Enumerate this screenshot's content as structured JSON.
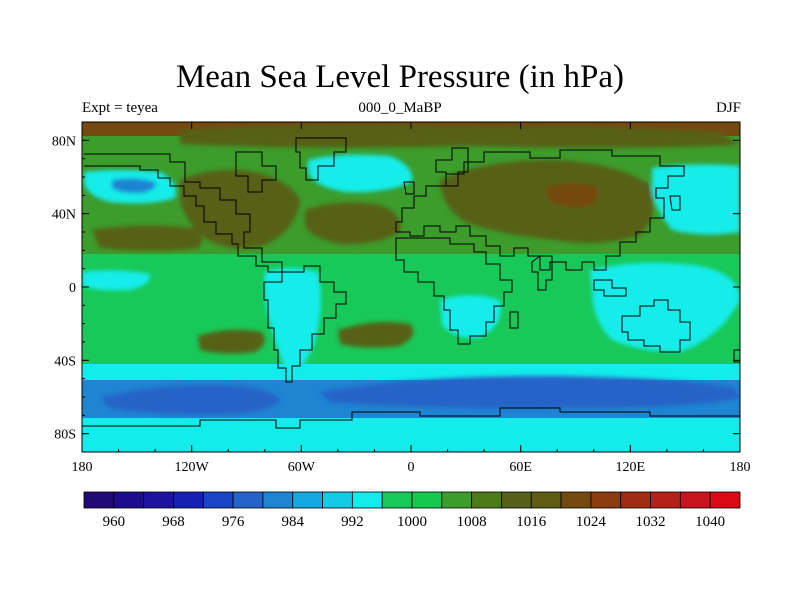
{
  "title": "Mean Sea Level Pressure (in hPa)",
  "left_string": "Expt = teyea",
  "center_string": "000_0_MaBP",
  "right_string": "DJF",
  "lon_ticks": [
    "180",
    "120W",
    "60W",
    "0",
    "60E",
    "120E",
    "180"
  ],
  "lat_ticks": [
    "80N",
    "40N",
    "0",
    "40S",
    "80S"
  ],
  "colorbar_labels": [
    "960",
    "968",
    "976",
    "984",
    "992",
    "1000",
    "1008",
    "1016",
    "1024",
    "1032",
    "1040"
  ],
  "colorbar_colors": [
    "#1f0a78",
    "#1d0c8c",
    "#1c14a0",
    "#1620b6",
    "#1846c6",
    "#2563c8",
    "#1f84d2",
    "#16a8e0",
    "#12cce6",
    "#12ecea",
    "#18c858",
    "#17c84e",
    "#3c9c2c",
    "#4c7c18",
    "#566018",
    "#5e5c14",
    "#744a10",
    "#8c3a10",
    "#a02c12",
    "#b4201a",
    "#c8141c",
    "#dc0a14"
  ],
  "colorbar_unit_step": 4,
  "pressure_field_colors": {
    "lowest": "#2563c8",
    "low": "#1f84d2",
    "mid_low": "#12ecea",
    "normal": "#18c858",
    "mid_high": "#3c9c2c",
    "high": "#566018",
    "highest": "#744a10"
  }
}
